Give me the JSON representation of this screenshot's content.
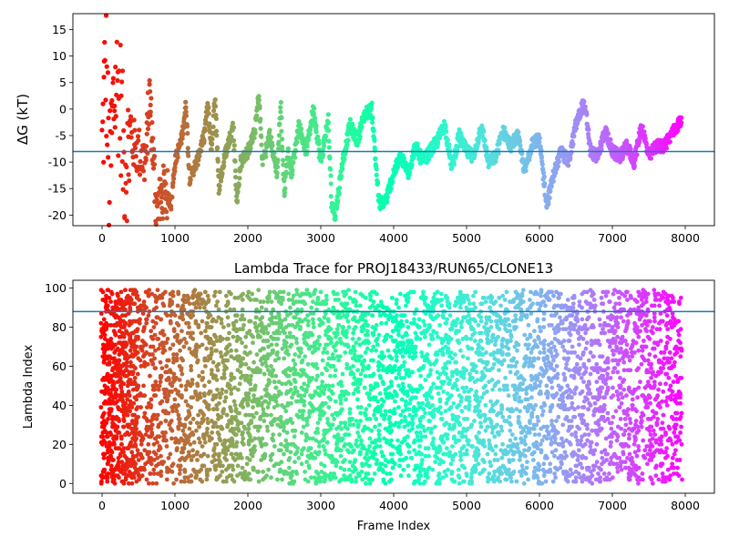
{
  "chart_data": [
    {
      "type": "scatter",
      "title": "",
      "xlabel": "",
      "ylabel": "ΔG (kT)",
      "xlim": [
        -400,
        8400
      ],
      "ylim": [
        -22,
        18
      ],
      "xticks": [
        "0",
        "1000",
        "2000",
        "3000",
        "4000",
        "5000",
        "6000",
        "7000",
        "8000"
      ],
      "yticks": [
        "15",
        "10",
        "5",
        "0",
        "-5",
        "-10",
        "-15",
        "-20"
      ],
      "reference_line": {
        "orientation": "horizontal",
        "y": -8,
        "color": "#1f77b4"
      },
      "colormap": "rainbow (reversed with frame index: red at frame 0, violet at frame 8000)",
      "grid": false,
      "legend": "none",
      "series": [
        {
          "x": [
            0,
            50,
            100,
            150,
            200,
            250,
            300,
            400,
            500,
            600,
            650,
            750,
            850,
            950,
            1000,
            1100,
            1150,
            1200,
            1300,
            1400,
            1450,
            1500,
            1550,
            1600,
            1700,
            1800,
            1850,
            1900,
            2000,
            2100,
            2150,
            2200,
            2300,
            2400,
            2450,
            2500,
            2550,
            2600,
            2700,
            2800,
            2900,
            3000,
            3100,
            3150,
            3200,
            3300,
            3400,
            3500,
            3600,
            3700,
            3800,
            3900,
            4000,
            4100,
            4200,
            4300,
            4400,
            4500,
            4600,
            4700,
            4800,
            4900,
            5000,
            5100,
            5200,
            5300,
            5400,
            5500,
            5600,
            5700,
            5800,
            5900,
            6000,
            6100,
            6200,
            6300,
            6400,
            6500,
            6600,
            6650,
            6700,
            6800,
            6900,
            7000,
            7100,
            7200,
            7300,
            7400,
            7500,
            7600,
            7700,
            7800,
            7900,
            7950
          ],
          "y": [
            -8,
            10,
            -15,
            0,
            5,
            2,
            -10,
            -6,
            -8,
            -10,
            3,
            -20,
            -15,
            -18,
            -10,
            -5,
            1,
            -13,
            -10,
            -5,
            1,
            -8,
            3,
            -15,
            -8,
            -3,
            -18,
            -10,
            -8,
            -4,
            3,
            -10,
            -5,
            -12,
            1,
            -16,
            -8,
            -12,
            -3,
            -8,
            0,
            -10,
            -2,
            -18,
            -20,
            -10,
            -3,
            -6,
            -1,
            0,
            -18,
            -17,
            -12,
            -9,
            -12,
            -7,
            -10,
            -8,
            -6,
            -3,
            -11,
            -5,
            -8,
            -9,
            -3,
            -10,
            -9,
            -4,
            -7,
            -5,
            -12,
            -6,
            -6,
            -18,
            -12,
            -8,
            -10,
            -3,
            1,
            -2,
            -8,
            -9,
            -4,
            -8,
            -9,
            -7,
            -10,
            -3,
            -9,
            -7,
            -7,
            -5,
            -3,
            -2
          ]
        }
      ]
    },
    {
      "type": "scatter",
      "title": "Lambda Trace for PROJ18433/RUN65/CLONE13",
      "xlabel": "Frame Index",
      "ylabel": "Lambda Index",
      "xlim": [
        -400,
        8400
      ],
      "ylim": [
        -5,
        104
      ],
      "xticks": [
        "0",
        "1000",
        "2000",
        "3000",
        "4000",
        "5000",
        "6000",
        "7000",
        "8000"
      ],
      "yticks": [
        "100",
        "80",
        "60",
        "40",
        "20",
        "0"
      ],
      "reference_line": {
        "orientation": "horizontal",
        "y": 88,
        "color": "#1f77b4"
      },
      "colormap": "rainbow (reversed with frame index: red at frame 0, violet at frame 8000)",
      "grid": false,
      "legend": "none",
      "series": [
        {
          "x_range": [
            0,
            8000
          ],
          "y_range": [
            0,
            99
          ],
          "pattern": "dense vertical sweeps of points spanning lambda 0–99 across all frames"
        }
      ]
    }
  ]
}
